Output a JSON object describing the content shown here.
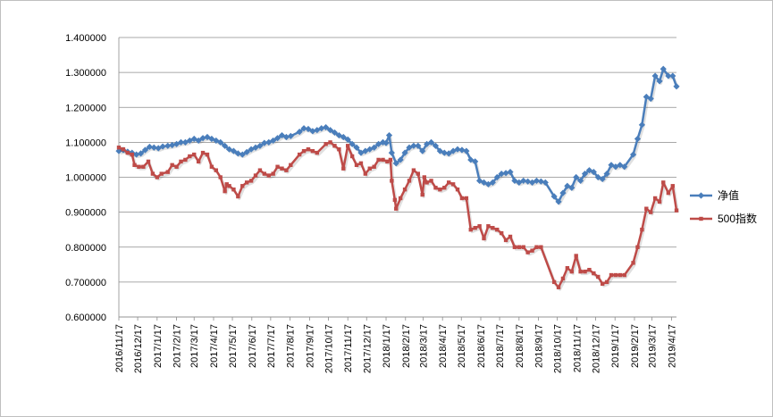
{
  "chart_data": {
    "type": "line",
    "title": "",
    "xlabel": "",
    "ylabel": "",
    "ylim": [
      0.6,
      1.4
    ],
    "y_ticks": [
      "0.600000",
      "0.700000",
      "0.800000",
      "0.900000",
      "1.000000",
      "1.100000",
      "1.200000",
      "1.300000",
      "1.400000"
    ],
    "x_ticks": [
      "2016/11/17",
      "2016/12/17",
      "2017/1/17",
      "2017/2/17",
      "2017/3/17",
      "2017/4/17",
      "2017/5/17",
      "2017/6/17",
      "2017/7/17",
      "2017/8/17",
      "2017/9/17",
      "2017/10/17",
      "2017/11/17",
      "2017/12/17",
      "2018/1/17",
      "2018/2/17",
      "2018/3/17",
      "2018/4/17",
      "2018/5/17",
      "2018/6/17",
      "2018/7/17",
      "2018/8/17",
      "2018/9/17",
      "2018/10/17",
      "2018/11/17",
      "2018/12/17",
      "2019/1/17",
      "2019/2/17",
      "2019/3/17",
      "2019/4/17"
    ],
    "x_range": [
      "2016/11/17",
      "2019/4/25"
    ],
    "grid": "horizontal",
    "legend_position": "right",
    "series": [
      {
        "name": "净值",
        "color": "#4a7ebb",
        "marker": "diamond",
        "points": [
          [
            "2016/11/17",
            1.075
          ],
          [
            "2016/11/24",
            1.078
          ],
          [
            "2016/12/1",
            1.073
          ],
          [
            "2016/12/8",
            1.07
          ],
          [
            "2016/12/15",
            1.065
          ],
          [
            "2016/12/22",
            1.068
          ],
          [
            "2016/12/29",
            1.078
          ],
          [
            "2017/1/5",
            1.087
          ],
          [
            "2017/1/12",
            1.085
          ],
          [
            "2017/1/19",
            1.083
          ],
          [
            "2017/1/26",
            1.088
          ],
          [
            "2017/2/3",
            1.09
          ],
          [
            "2017/2/10",
            1.092
          ],
          [
            "2017/2/17",
            1.095
          ],
          [
            "2017/2/24",
            1.1
          ],
          [
            "2017/3/3",
            1.1
          ],
          [
            "2017/3/10",
            1.105
          ],
          [
            "2017/3/17",
            1.11
          ],
          [
            "2017/3/24",
            1.105
          ],
          [
            "2017/3/31",
            1.112
          ],
          [
            "2017/4/7",
            1.115
          ],
          [
            "2017/4/14",
            1.11
          ],
          [
            "2017/4/21",
            1.105
          ],
          [
            "2017/4/28",
            1.1
          ],
          [
            "2017/5/5",
            1.09
          ],
          [
            "2017/5/12",
            1.08
          ],
          [
            "2017/5/19",
            1.075
          ],
          [
            "2017/5/26",
            1.068
          ],
          [
            "2017/6/2",
            1.065
          ],
          [
            "2017/6/9",
            1.072
          ],
          [
            "2017/6/16",
            1.08
          ],
          [
            "2017/6/23",
            1.085
          ],
          [
            "2017/6/30",
            1.09
          ],
          [
            "2017/7/7",
            1.098
          ],
          [
            "2017/7/14",
            1.1
          ],
          [
            "2017/7/21",
            1.105
          ],
          [
            "2017/7/28",
            1.112
          ],
          [
            "2017/8/4",
            1.12
          ],
          [
            "2017/8/11",
            1.115
          ],
          [
            "2017/8/18",
            1.118
          ],
          [
            "2017/9/1",
            1.13
          ],
          [
            "2017/9/8",
            1.14
          ],
          [
            "2017/9/15",
            1.138
          ],
          [
            "2017/9/22",
            1.132
          ],
          [
            "2017/9/29",
            1.135
          ],
          [
            "2017/10/6",
            1.14
          ],
          [
            "2017/10/13",
            1.143
          ],
          [
            "2017/10/20",
            1.135
          ],
          [
            "2017/10/27",
            1.128
          ],
          [
            "2017/11/3",
            1.12
          ],
          [
            "2017/11/10",
            1.115
          ],
          [
            "2017/11/17",
            1.108
          ],
          [
            "2017/11/24",
            1.095
          ],
          [
            "2017/12/1",
            1.085
          ],
          [
            "2017/12/8",
            1.07
          ],
          [
            "2017/12/15",
            1.075
          ],
          [
            "2017/12/22",
            1.08
          ],
          [
            "2017/12/29",
            1.085
          ],
          [
            "2018/1/5",
            1.095
          ],
          [
            "2018/1/12",
            1.1
          ],
          [
            "2018/1/17",
            1.098
          ],
          [
            "2018/1/22",
            1.12
          ],
          [
            "2018/1/26",
            1.07
          ],
          [
            "2018/2/2",
            1.04
          ],
          [
            "2018/2/9",
            1.05
          ],
          [
            "2018/2/16",
            1.07
          ],
          [
            "2018/2/23",
            1.085
          ],
          [
            "2018/3/2",
            1.09
          ],
          [
            "2018/3/9",
            1.09
          ],
          [
            "2018/3/16",
            1.075
          ],
          [
            "2018/3/23",
            1.095
          ],
          [
            "2018/3/30",
            1.1
          ],
          [
            "2018/4/6",
            1.09
          ],
          [
            "2018/4/13",
            1.075
          ],
          [
            "2018/4/20",
            1.07
          ],
          [
            "2018/4/27",
            1.068
          ],
          [
            "2018/5/4",
            1.075
          ],
          [
            "2018/5/11",
            1.08
          ],
          [
            "2018/5/18",
            1.078
          ],
          [
            "2018/5/25",
            1.075
          ],
          [
            "2018/6/1",
            1.05
          ],
          [
            "2018/6/8",
            1.045
          ],
          [
            "2018/6/15",
            0.99
          ],
          [
            "2018/6/22",
            0.985
          ],
          [
            "2018/6/29",
            0.98
          ],
          [
            "2018/7/6",
            0.985
          ],
          [
            "2018/7/13",
            1.0
          ],
          [
            "2018/7/20",
            1.01
          ],
          [
            "2018/7/27",
            1.012
          ],
          [
            "2018/8/3",
            1.015
          ],
          [
            "2018/8/10",
            0.99
          ],
          [
            "2018/8/17",
            0.985
          ],
          [
            "2018/8/24",
            0.99
          ],
          [
            "2018/8/31",
            0.988
          ],
          [
            "2018/9/7",
            0.985
          ],
          [
            "2018/9/14",
            0.99
          ],
          [
            "2018/9/21",
            0.988
          ],
          [
            "2018/9/28",
            0.985
          ],
          [
            "2018/10/12",
            0.945
          ],
          [
            "2018/10/19",
            0.93
          ],
          [
            "2018/10/26",
            0.955
          ],
          [
            "2018/11/2",
            0.975
          ],
          [
            "2018/11/9",
            0.97
          ],
          [
            "2018/11/16",
            1.0
          ],
          [
            "2018/11/23",
            0.99
          ],
          [
            "2018/11/30",
            1.01
          ],
          [
            "2018/12/7",
            1.02
          ],
          [
            "2018/12/14",
            1.015
          ],
          [
            "2018/12/21",
            1.0
          ],
          [
            "2018/12/28",
            0.995
          ],
          [
            "2019/1/4",
            1.01
          ],
          [
            "2019/1/11",
            1.035
          ],
          [
            "2019/1/18",
            1.03
          ],
          [
            "2019/1/25",
            1.035
          ],
          [
            "2019/2/1",
            1.03
          ],
          [
            "2019/2/15",
            1.065
          ],
          [
            "2019/2/22",
            1.11
          ],
          [
            "2019/3/1",
            1.15
          ],
          [
            "2019/3/8",
            1.23
          ],
          [
            "2019/3/15",
            1.225
          ],
          [
            "2019/3/22",
            1.29
          ],
          [
            "2019/3/29",
            1.275
          ],
          [
            "2019/4/4",
            1.31
          ],
          [
            "2019/4/12",
            1.29
          ],
          [
            "2019/4/19",
            1.29
          ],
          [
            "2019/4/25",
            1.26
          ]
        ]
      },
      {
        "name": "500指数",
        "color": "#be4b48",
        "marker": "square",
        "points": [
          [
            "2016/11/17",
            1.085
          ],
          [
            "2016/11/24",
            1.08
          ],
          [
            "2016/12/1",
            1.07
          ],
          [
            "2016/12/8",
            1.065
          ],
          [
            "2016/12/12",
            1.035
          ],
          [
            "2016/12/19",
            1.03
          ],
          [
            "2016/12/26",
            1.03
          ],
          [
            "2017/1/3",
            1.045
          ],
          [
            "2017/1/10",
            1.01
          ],
          [
            "2017/1/17",
            1.0
          ],
          [
            "2017/1/24",
            1.01
          ],
          [
            "2017/2/3",
            1.015
          ],
          [
            "2017/2/10",
            1.035
          ],
          [
            "2017/2/17",
            1.03
          ],
          [
            "2017/2/24",
            1.045
          ],
          [
            "2017/3/3",
            1.05
          ],
          [
            "2017/3/10",
            1.06
          ],
          [
            "2017/3/17",
            1.065
          ],
          [
            "2017/3/24",
            1.045
          ],
          [
            "2017/3/31",
            1.07
          ],
          [
            "2017/4/7",
            1.065
          ],
          [
            "2017/4/14",
            1.03
          ],
          [
            "2017/4/21",
            1.02
          ],
          [
            "2017/4/28",
            1.0
          ],
          [
            "2017/5/5",
            0.96
          ],
          [
            "2017/5/8",
            0.98
          ],
          [
            "2017/5/12",
            0.975
          ],
          [
            "2017/5/19",
            0.965
          ],
          [
            "2017/5/26",
            0.945
          ],
          [
            "2017/6/2",
            0.975
          ],
          [
            "2017/6/9",
            0.985
          ],
          [
            "2017/6/16",
            0.99
          ],
          [
            "2017/6/23",
            1.005
          ],
          [
            "2017/6/30",
            1.02
          ],
          [
            "2017/7/7",
            1.01
          ],
          [
            "2017/7/14",
            1.005
          ],
          [
            "2017/7/21",
            1.01
          ],
          [
            "2017/7/28",
            1.03
          ],
          [
            "2017/8/4",
            1.025
          ],
          [
            "2017/8/11",
            1.02
          ],
          [
            "2017/8/18",
            1.035
          ],
          [
            "2017/9/1",
            1.065
          ],
          [
            "2017/9/8",
            1.075
          ],
          [
            "2017/9/15",
            1.08
          ],
          [
            "2017/9/22",
            1.075
          ],
          [
            "2017/9/29",
            1.07
          ],
          [
            "2017/10/13",
            1.095
          ],
          [
            "2017/10/20",
            1.1
          ],
          [
            "2017/10/27",
            1.09
          ],
          [
            "2017/11/3",
            1.08
          ],
          [
            "2017/11/10",
            1.025
          ],
          [
            "2017/11/17",
            1.09
          ],
          [
            "2017/11/24",
            1.06
          ],
          [
            "2017/12/1",
            1.035
          ],
          [
            "2017/12/8",
            1.04
          ],
          [
            "2017/12/15",
            1.01
          ],
          [
            "2017/12/22",
            1.025
          ],
          [
            "2017/12/29",
            1.03
          ],
          [
            "2018/1/5",
            1.05
          ],
          [
            "2018/1/12",
            1.05
          ],
          [
            "2018/1/19",
            1.045
          ],
          [
            "2018/1/24",
            1.05
          ],
          [
            "2018/1/26",
            0.99
          ],
          [
            "2018/1/31",
            0.935
          ],
          [
            "2018/2/2",
            0.91
          ],
          [
            "2018/2/9",
            0.94
          ],
          [
            "2018/2/16",
            0.965
          ],
          [
            "2018/2/23",
            0.99
          ],
          [
            "2018/3/2",
            1.02
          ],
          [
            "2018/3/9",
            1.01
          ],
          [
            "2018/3/16",
            0.95
          ],
          [
            "2018/3/19",
            1.0
          ],
          [
            "2018/3/23",
            0.985
          ],
          [
            "2018/3/30",
            0.99
          ],
          [
            "2018/4/6",
            0.97
          ],
          [
            "2018/4/13",
            0.965
          ],
          [
            "2018/4/20",
            0.97
          ],
          [
            "2018/4/27",
            0.985
          ],
          [
            "2018/5/4",
            0.98
          ],
          [
            "2018/5/11",
            0.965
          ],
          [
            "2018/5/18",
            0.94
          ],
          [
            "2018/5/25",
            0.94
          ],
          [
            "2018/6/1",
            0.85
          ],
          [
            "2018/6/8",
            0.855
          ],
          [
            "2018/6/15",
            0.86
          ],
          [
            "2018/6/22",
            0.825
          ],
          [
            "2018/6/29",
            0.86
          ],
          [
            "2018/7/6",
            0.855
          ],
          [
            "2018/7/13",
            0.85
          ],
          [
            "2018/7/20",
            0.84
          ],
          [
            "2018/7/27",
            0.82
          ],
          [
            "2018/8/3",
            0.83
          ],
          [
            "2018/8/10",
            0.8
          ],
          [
            "2018/8/17",
            0.8
          ],
          [
            "2018/8/24",
            0.8
          ],
          [
            "2018/8/31",
            0.785
          ],
          [
            "2018/9/7",
            0.79
          ],
          [
            "2018/9/14",
            0.8
          ],
          [
            "2018/9/21",
            0.8
          ],
          [
            "2018/10/12",
            0.7
          ],
          [
            "2018/10/19",
            0.685
          ],
          [
            "2018/10/26",
            0.71
          ],
          [
            "2018/11/2",
            0.74
          ],
          [
            "2018/11/9",
            0.73
          ],
          [
            "2018/11/16",
            0.775
          ],
          [
            "2018/11/23",
            0.73
          ],
          [
            "2018/11/30",
            0.73
          ],
          [
            "2018/12/7",
            0.735
          ],
          [
            "2018/12/14",
            0.725
          ],
          [
            "2018/12/21",
            0.715
          ],
          [
            "2018/12/28",
            0.695
          ],
          [
            "2019/1/4",
            0.7
          ],
          [
            "2019/1/11",
            0.72
          ],
          [
            "2019/1/18",
            0.72
          ],
          [
            "2019/1/25",
            0.72
          ],
          [
            "2019/2/1",
            0.72
          ],
          [
            "2019/2/15",
            0.755
          ],
          [
            "2019/2/22",
            0.8
          ],
          [
            "2019/3/1",
            0.85
          ],
          [
            "2019/3/8",
            0.91
          ],
          [
            "2019/3/15",
            0.9
          ],
          [
            "2019/3/22",
            0.94
          ],
          [
            "2019/3/29",
            0.93
          ],
          [
            "2019/4/4",
            0.985
          ],
          [
            "2019/4/12",
            0.955
          ],
          [
            "2019/4/19",
            0.975
          ],
          [
            "2019/4/25",
            0.905
          ]
        ]
      }
    ]
  }
}
